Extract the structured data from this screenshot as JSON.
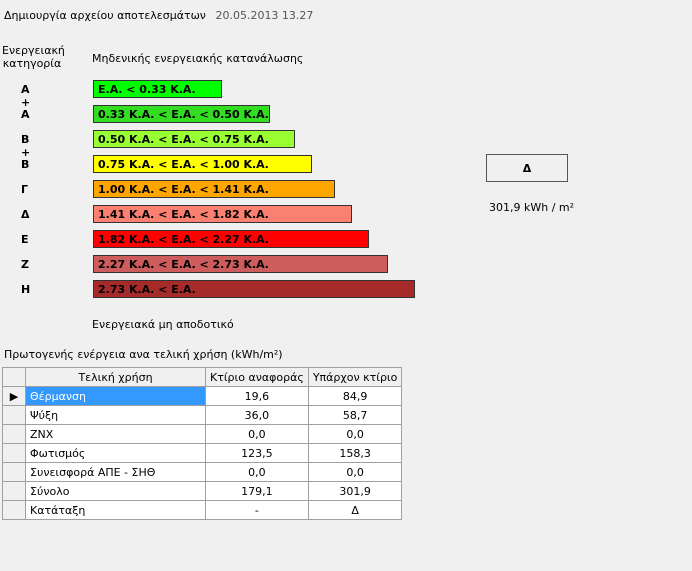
{
  "header": {
    "title": "Δημιουργία αρχείου αποτελεσμάτων",
    "date": "20.05.2013 13.27"
  },
  "category_header": "Ενεργειακή κατηγορία",
  "zero_label": "Μηδενικής ενεργειακής κατανάλωσης",
  "ratings": [
    {
      "letter": "A +",
      "label": "Ε.Α. < 0.33 Κ.Α.",
      "color": "#00ff00"
    },
    {
      "letter": "A",
      "label": "0.33 Κ.Α. < Ε.Α. < 0.50 Κ.Α.",
      "color": "#33dd22"
    },
    {
      "letter": "B +",
      "label": "0.50 Κ.Α. < Ε.Α. < 0.75 Κ.Α.",
      "color": "#99ff33"
    },
    {
      "letter": "B",
      "label": "0.75 Κ.Α. < Ε.Α. < 1.00 Κ.Α.",
      "color": "#ffff00"
    },
    {
      "letter": "Γ",
      "label": "1.00 Κ.Α. < Ε.Α. < 1.41 Κ.Α.",
      "color": "#ffa500"
    },
    {
      "letter": "Δ",
      "label": "1.41 Κ.Α. < Ε.Α. < 1.82 Κ.Α.",
      "color": "#fa8072"
    },
    {
      "letter": "E",
      "label": "1.82 Κ.Α. < Ε.Α. < 2.27 Κ.Α.",
      "color": "#ff0000"
    },
    {
      "letter": "Z",
      "label": "2.27 Κ.Α. < Ε.Α. < 2.73 Κ.Α.",
      "color": "#cd5c5c"
    },
    {
      "letter": "H",
      "label": "2.73 Κ.Α. < Ε.Α.",
      "color": "#a52a2a"
    }
  ],
  "result": {
    "category": "Δ",
    "value": "301,9 kWh / m²"
  },
  "nonefficient_label": "Ενεργειακά μη αποδοτικό",
  "table": {
    "title": "Πρωτογενής ενέργεια ανα τελική χρήση (kWh/m²)",
    "headers": [
      "Τελική χρήση",
      "Κτίριο αναφοράς",
      "Υπάρχον κτίριο"
    ],
    "rows": [
      [
        "Θέρμανση",
        "19,6",
        "84,9"
      ],
      [
        "Ψύξη",
        "36,0",
        "58,7"
      ],
      [
        "ΖΝΧ",
        "0,0",
        "0,0"
      ],
      [
        "Φωτισμός",
        "123,5",
        "158,3"
      ],
      [
        "Συνεισφορά ΑΠΕ - ΣΗΘ",
        "0,0",
        "0,0"
      ],
      [
        "Σύνολο",
        "179,1",
        "301,9"
      ],
      [
        "Κατάταξη",
        "-",
        "Δ"
      ]
    ]
  }
}
